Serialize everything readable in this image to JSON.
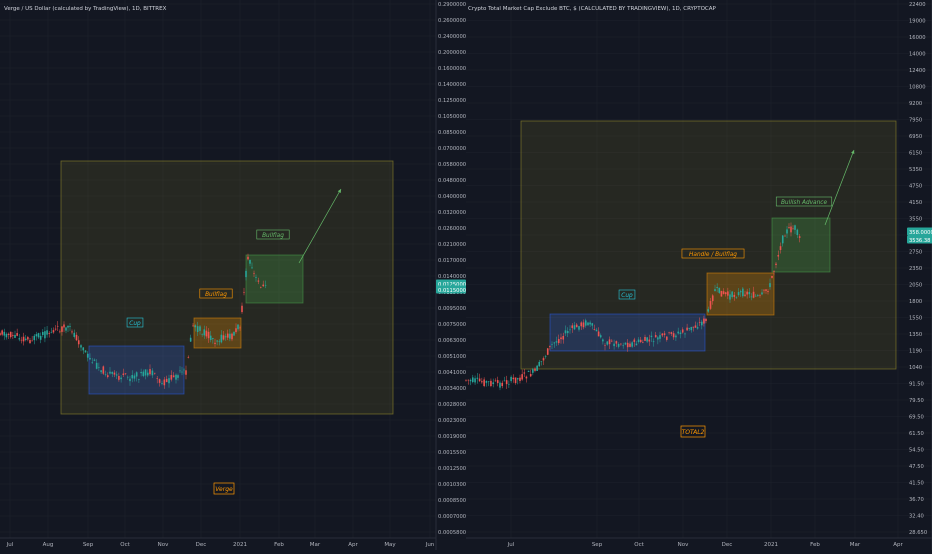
{
  "colors": {
    "background": "#131722",
    "grid": "#1e222d",
    "axis_text": "#b2b5be",
    "axis_line": "#2a2e39",
    "candle_up": "#26a69a",
    "candle_down": "#ef5350",
    "cup_box": "#2962ff",
    "bullflag_box": "#ff9800",
    "advance_box": "#4caf50",
    "outer_box": "#b2a629",
    "arrow": "#66bb6a",
    "price_badge": "#26a69a"
  },
  "chart_data": [
    {
      "type": "candlestick",
      "title": "Verge / US Dollar (calculated by TradingView), 1D, BITTREX",
      "watermark": "Verge",
      "x_axis_labels": [
        "Jul",
        "Aug",
        "Sep",
        "Oct",
        "Nov",
        "Dec",
        "2021",
        "Feb",
        "Mar",
        "Apr",
        "May",
        "Jun"
      ],
      "y_axis_scale": "log",
      "y_axis_labels": [
        "0.2900000",
        "0.2600000",
        "0.2400000",
        "0.2000000",
        "0.1600000",
        "0.1400000",
        "0.1250000",
        "0.1050000",
        "0.0850000",
        "0.0700000",
        "0.0580000",
        "0.0480000",
        "0.0400000",
        "0.0320000",
        "0.0260000",
        "0.0210000",
        "0.0170000",
        "0.0140000",
        "0.0115000",
        "0.0095000",
        "0.0075000",
        "0.0063000",
        "0.0051000",
        "0.0041000",
        "0.0034000",
        "0.0028000",
        "0.0023000",
        "0.0019000",
        "0.0015500",
        "0.0012500",
        "0.0010300",
        "0.0008500",
        "0.0007000",
        "0.0005800"
      ],
      "price_badges": [
        "0.0125000",
        "0.0115000"
      ],
      "annotations": [
        "Cup",
        "Bullflag",
        "Bullflag"
      ],
      "price_path": [
        {
          "date": "2020-07-01",
          "price": 0.0072
        },
        {
          "date": "2020-07-15",
          "price": 0.0068
        },
        {
          "date": "2020-08-01",
          "price": 0.0066
        },
        {
          "date": "2020-08-10",
          "price": 0.007
        },
        {
          "date": "2020-08-18",
          "price": 0.0052
        },
        {
          "date": "2020-09-01",
          "price": 0.0043
        },
        {
          "date": "2020-09-20",
          "price": 0.0041
        },
        {
          "date": "2020-10-10",
          "price": 0.0042
        },
        {
          "date": "2020-10-25",
          "price": 0.0038
        },
        {
          "date": "2020-11-05",
          "price": 0.004
        },
        {
          "date": "2020-11-14",
          "price": 0.0042
        },
        {
          "date": "2020-11-18",
          "price": 0.0085
        },
        {
          "date": "2020-11-25",
          "price": 0.008
        },
        {
          "date": "2020-12-10",
          "price": 0.0072
        },
        {
          "date": "2020-12-25",
          "price": 0.0078
        },
        {
          "date": "2021-01-01",
          "price": 0.0085
        },
        {
          "date": "2021-01-06",
          "price": 0.0175
        },
        {
          "date": "2021-01-12",
          "price": 0.014
        },
        {
          "date": "2021-01-20",
          "price": 0.0118
        }
      ]
    },
    {
      "type": "candlestick",
      "title": "Crypto Total Market Cap Exclude BTC, $ (CALCULATED BY TRADINGVIEW), 1D, CRYPTOCAP",
      "watermark": "TOTAL2",
      "x_axis_labels": [
        "Jul",
        "Sep",
        "Oct",
        "Nov",
        "Dec",
        "2021",
        "Feb",
        "Mar",
        "Apr"
      ],
      "y_axis_scale": "log",
      "y_axis_labels": [
        "22400",
        "19000",
        "16000",
        "14000",
        "12400",
        "10800",
        "9200",
        "7950",
        "6950",
        "6150",
        "5350",
        "4750",
        "4150",
        "3550",
        "3150",
        "2750",
        "2350",
        "2050",
        "1800",
        "1550",
        "1350",
        "1190",
        "1040",
        "91.50",
        "79.50",
        "69.50",
        "61.50",
        "54.50",
        "47.50",
        "41.50",
        "36.70",
        "32.40",
        "28.650"
      ],
      "price_badges": [
        "358.0000",
        "3536.38"
      ],
      "annotations": [
        "Cup",
        "Handle / Bullflag",
        "Bullish Advance"
      ],
      "price_path": [
        {
          "date": "2020-06-15",
          "price": 895
        },
        {
          "date": "2020-07-10",
          "price": 880
        },
        {
          "date": "2020-07-25",
          "price": 1000
        },
        {
          "date": "2020-08-15",
          "price": 1420
        },
        {
          "date": "2020-09-01",
          "price": 1520
        },
        {
          "date": "2020-09-20",
          "price": 1350
        },
        {
          "date": "2020-10-15",
          "price": 1300
        },
        {
          "date": "2020-11-05",
          "price": 1450
        },
        {
          "date": "2020-11-15",
          "price": 1700
        },
        {
          "date": "2020-11-25",
          "price": 2050
        },
        {
          "date": "2020-12-10",
          "price": 1900
        },
        {
          "date": "2020-12-25",
          "price": 2100
        },
        {
          "date": "2021-01-01",
          "price": 2400
        },
        {
          "date": "2021-01-10",
          "price": 3200
        },
        {
          "date": "2021-01-20",
          "price": 3500
        }
      ]
    }
  ]
}
